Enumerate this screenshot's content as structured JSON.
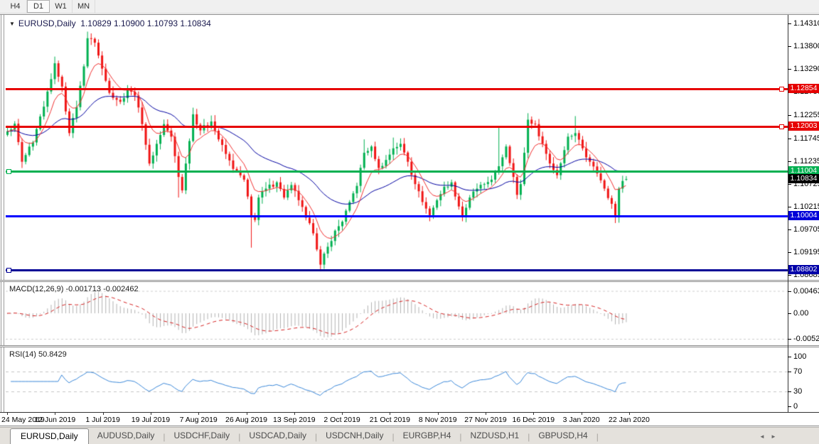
{
  "toolbar": {
    "buttons": [
      {
        "label": "H4",
        "active": false
      },
      {
        "label": "D1",
        "active": true
      },
      {
        "label": "W1",
        "active": false
      },
      {
        "label": "MN",
        "active": false
      }
    ]
  },
  "chart": {
    "title_symbol": "EURUSD,Daily",
    "ohlc": "1.10829 1.10900 1.10793 1.10834",
    "price_axis": [
      "1.14310",
      "1.13800",
      "1.13290",
      "1.12780",
      "1.12255",
      "1.11745",
      "1.11235",
      "1.10725",
      "1.10215",
      "1.09705",
      "1.09195",
      "1.08685"
    ],
    "hlines": [
      {
        "label": "1.12854",
        "price": 1.12854,
        "color": "#e60000",
        "tag_bg": "#e60000",
        "handle": "right"
      },
      {
        "label": "1.12003",
        "price": 1.12003,
        "color": "#e60000",
        "tag_bg": "#e60000",
        "handle": "right"
      },
      {
        "label": "1.11004",
        "price": 1.11004,
        "color": "#00b050",
        "tag_bg": "#00b050",
        "handle": "left"
      },
      {
        "label": "1.10004",
        "price": 1.10004,
        "color": "#0000ff",
        "tag_bg": "#0000d8",
        "handle": "none"
      },
      {
        "label": "1.08802",
        "price": 1.08802,
        "color": "#000096",
        "tag_bg": "#0000a8",
        "handle": "left"
      }
    ],
    "current_tag": {
      "label": "1.10834",
      "bg": "#000000"
    }
  },
  "macd": {
    "label": "MACD(12,26,9)",
    "values": "-0.001713 -0.002462",
    "axis": [
      {
        "label": "0.00463",
        "value": 0.00463
      },
      {
        "label": "0.00",
        "value": 0
      },
      {
        "label": "-0.00529",
        "value": -0.00529
      }
    ]
  },
  "rsi": {
    "label": "RSI(14)",
    "value": "50.8429",
    "axis": [
      {
        "label": "100",
        "value": 100
      },
      {
        "label": "70",
        "value": 70
      },
      {
        "label": "30",
        "value": 30
      },
      {
        "label": "0",
        "value": 0
      }
    ],
    "levels": [
      70,
      30
    ]
  },
  "dates": [
    "24 May 2019",
    "12 Jun 2019",
    "1 Jul 2019",
    "19 Jul 2019",
    "7 Aug 2019",
    "26 Aug 2019",
    "13 Sep 2019",
    "2 Oct 2019",
    "21 Oct 2019",
    "8 Nov 2019",
    "27 Nov 2019",
    "16 Dec 2019",
    "3 Jan 2020",
    "22 Jan 2020"
  ],
  "tabs": {
    "items": [
      {
        "label": "EURUSD,Daily",
        "active": true
      },
      {
        "label": "AUDUSD,Daily",
        "active": false
      },
      {
        "label": "USDCHF,Daily",
        "active": false
      },
      {
        "label": "USDCAD,Daily",
        "active": false
      },
      {
        "label": "USDCNH,Daily",
        "active": false
      },
      {
        "label": "EURGBP,H4",
        "active": false
      },
      {
        "label": "NZDUSD,H1",
        "active": false
      },
      {
        "label": "GBPUSD,H4",
        "active": false
      }
    ],
    "arrow_left": "◄",
    "arrow_right": "►"
  },
  "chart_data": {
    "type": "candlestick",
    "symbol": "EURUSD",
    "timeframe": "Daily",
    "title": "EURUSD,Daily",
    "last_candle": {
      "open": 1.10829,
      "high": 1.109,
      "low": 1.10793,
      "close": 1.10834
    },
    "candle_count": 171,
    "price_axis_ticks": [
      1.1431,
      1.138,
      1.1329,
      1.1278,
      1.12255,
      1.11745,
      1.11235,
      1.10725,
      1.10215,
      1.09705,
      1.09195,
      1.08685
    ],
    "horizontal_levels": [
      1.12854,
      1.12003,
      1.11004,
      1.10004,
      1.08802
    ],
    "x_axis_dates": [
      "24 May 2019",
      "12 Jun 2019",
      "1 Jul 2019",
      "19 Jul 2019",
      "7 Aug 2019",
      "26 Aug 2019",
      "13 Sep 2019",
      "2 Oct 2019",
      "21 Oct 2019",
      "8 Nov 2019",
      "27 Nov 2019",
      "16 Dec 2019",
      "3 Jan 2020",
      "22 Jan 2020"
    ],
    "close_keypoints": [
      [
        0,
        1.119
      ],
      [
        2,
        1.1207
      ],
      [
        4,
        1.1122
      ],
      [
        7,
        1.1165
      ],
      [
        10,
        1.1245
      ],
      [
        13,
        1.1342
      ],
      [
        15,
        1.129
      ],
      [
        17,
        1.1186
      ],
      [
        19,
        1.1244
      ],
      [
        21,
        1.1335
      ],
      [
        22,
        1.1398
      ],
      [
        24,
        1.1388
      ],
      [
        26,
        1.133
      ],
      [
        28,
        1.1276
      ],
      [
        31,
        1.1256
      ],
      [
        33,
        1.1282
      ],
      [
        35,
        1.127
      ],
      [
        37,
        1.1206
      ],
      [
        39,
        1.1118
      ],
      [
        41,
        1.1162
      ],
      [
        43,
        1.1206
      ],
      [
        45,
        1.1178
      ],
      [
        47,
        1.1088
      ],
      [
        48,
        1.1058
      ],
      [
        49,
        1.1118
      ],
      [
        51,
        1.1228
      ],
      [
        53,
        1.1192
      ],
      [
        56,
        1.1212
      ],
      [
        58,
        1.1172
      ],
      [
        62,
        1.1106
      ],
      [
        65,
        1.1082
      ],
      [
        67,
        1.0998
      ],
      [
        68,
        1.0992
      ],
      [
        69,
        1.1042
      ],
      [
        71,
        1.1062
      ],
      [
        74,
        1.1076
      ],
      [
        76,
        1.1042
      ],
      [
        78,
        1.107
      ],
      [
        80,
        1.1036
      ],
      [
        82,
        1.0997
      ],
      [
        84,
        1.0962
      ],
      [
        85,
        1.0926
      ],
      [
        86,
        1.0892
      ],
      [
        88,
        1.0932
      ],
      [
        90,
        1.0968
      ],
      [
        92,
        1.0988
      ],
      [
        94,
        1.1032
      ],
      [
        96,
        1.1068
      ],
      [
        98,
        1.1142
      ],
      [
        100,
        1.1156
      ],
      [
        102,
        1.1108
      ],
      [
        104,
        1.1126
      ],
      [
        106,
        1.1152
      ],
      [
        108,
        1.1162
      ],
      [
        110,
        1.1122
      ],
      [
        112,
        1.1072
      ],
      [
        114,
        1.1032
      ],
      [
        116,
        1.1002
      ],
      [
        118,
        1.1036
      ],
      [
        120,
        1.1066
      ],
      [
        122,
        1.1076
      ],
      [
        124,
        1.1022
      ],
      [
        125,
        1.0999
      ],
      [
        127,
        1.1042
      ],
      [
        129,
        1.1062
      ],
      [
        131,
        1.1072
      ],
      [
        133,
        1.1082
      ],
      [
        135,
        1.1112
      ],
      [
        137,
        1.1156
      ],
      [
        139,
        1.1088
      ],
      [
        140,
        1.1048
      ],
      [
        141,
        1.1072
      ],
      [
        142,
        1.1142
      ],
      [
        143,
        1.1216
      ],
      [
        145,
        1.1206
      ],
      [
        147,
        1.1162
      ],
      [
        149,
        1.1118
      ],
      [
        151,
        1.1092
      ],
      [
        153,
        1.1148
      ],
      [
        154,
        1.1178
      ],
      [
        156,
        1.1186
      ],
      [
        158,
        1.1152
      ],
      [
        160,
        1.1122
      ],
      [
        162,
        1.1096
      ],
      [
        164,
        1.1062
      ],
      [
        166,
        1.1028
      ],
      [
        167,
        1.0999
      ],
      [
        168,
        1.1062
      ],
      [
        169,
        1.1079
      ],
      [
        170,
        1.10834
      ]
    ],
    "wick_overrides": {
      "4": {
        "low": 1.1108
      },
      "22": {
        "high": 1.1412
      },
      "47": {
        "low": 1.1042
      },
      "67": {
        "low": 1.093
      },
      "86": {
        "low": 1.0878
      },
      "98": {
        "high": 1.1172
      },
      "106": {
        "high": 1.1176
      },
      "116": {
        "low": 1.0989
      },
      "125": {
        "low": 1.0989
      },
      "135": {
        "high": 1.12
      },
      "143": {
        "high": 1.1224
      },
      "156": {
        "high": 1.1224
      },
      "167": {
        "low": 1.0985
      }
    },
    "overlays": [
      {
        "name": "fast-ma",
        "period": 8,
        "color": "#f03030"
      },
      {
        "name": "slow-ma",
        "period": 34,
        "color": "#0000a0"
      }
    ],
    "indicators": [
      {
        "name": "MACD",
        "params": [
          12,
          26,
          9
        ],
        "current_main": -0.001713,
        "current_signal": -0.002462,
        "axis": [
          0.00463,
          0,
          -0.00529
        ],
        "histogram_color": "#b2b2b2",
        "signal_color": "#d42020"
      },
      {
        "name": "RSI",
        "params": [
          14
        ],
        "current": 50.8429,
        "axis": [
          100,
          70,
          30,
          0
        ],
        "levels": [
          70,
          30
        ],
        "line_color": "#3a87d8"
      }
    ],
    "colors": {
      "up": "#00b050",
      "down": "#f01414",
      "background": "#ffffff"
    }
  }
}
